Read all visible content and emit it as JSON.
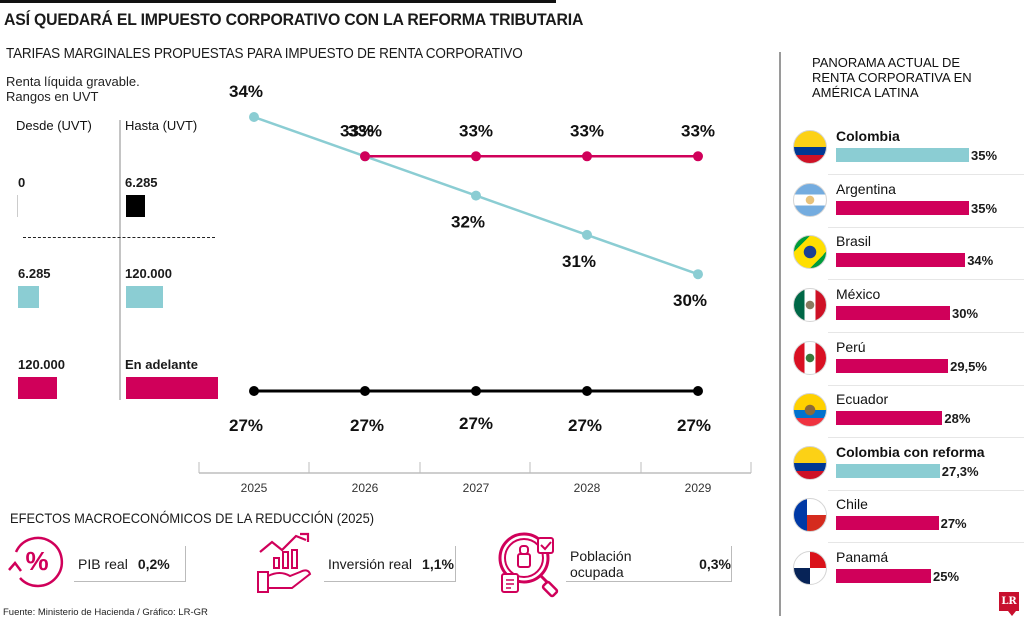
{
  "header": {
    "title": "ASÍ QUEDARÁ EL IMPUESTO CORPORATIVO CON LA REFORMA TRIBUTARIA",
    "subtitle": "TARIFAS MARGINALES PROPUESTAS PARA IMPUESTO DE RENTA CORPORATIVO",
    "note_line1": "Renta líquida gravable.",
    "note_line2": "Rangos en UVT"
  },
  "ranges": {
    "col_from": "Desde (UVT)",
    "col_to": "Hasta (UVT)",
    "rows": [
      {
        "from": "0",
        "to": "6.285",
        "color": "#000000"
      },
      {
        "from": "6.285",
        "to": "120.000",
        "color": "#8bcdd3"
      },
      {
        "from": "120.000",
        "to": "En adelante",
        "color": "#d0005a"
      }
    ]
  },
  "colors": {
    "black": "#000000",
    "teal": "#8bcdd3",
    "magenta": "#d0005a"
  },
  "chart_data": [
    {
      "type": "line",
      "title": "TARIFAS MARGINALES PROPUESTAS PARA IMPUESTO DE RENTA CORPORATIVO",
      "xlabel": "",
      "ylabel": "",
      "x": [
        "2025",
        "2026",
        "2027",
        "2028",
        "2029"
      ],
      "ylim": [
        26,
        35
      ],
      "grid": false,
      "series": [
        {
          "name": "6.285 - 120.000 UVT",
          "color": "#8bcdd3",
          "x": [
            "2025",
            "2026",
            "2027",
            "2028",
            "2029"
          ],
          "values": [
            34,
            33,
            32,
            31,
            30
          ],
          "labels": [
            "34%",
            "33%",
            "32%",
            "31%",
            "30%"
          ]
        },
        {
          "name": "120.000 UVT en adelante",
          "color": "#d0005a",
          "x": [
            "2026",
            "2027",
            "2028",
            "2029"
          ],
          "values": [
            33,
            33,
            33,
            33
          ],
          "labels": [
            "33%",
            "33%",
            "33%",
            "33%"
          ]
        },
        {
          "name": "0 - 6.285 UVT",
          "color": "#000000",
          "x": [
            "2025",
            "2026",
            "2027",
            "2028",
            "2029"
          ],
          "values": [
            27,
            27,
            27,
            27,
            27
          ],
          "labels": [
            "27%",
            "27%",
            "27%",
            "27%",
            "27%"
          ]
        }
      ]
    },
    {
      "type": "bar",
      "title": "PANORAMA ACTUAL DE RENTA CORPORATIVA EN AMÉRICA LATINA",
      "orientation": "horizontal",
      "categories": [
        "Colombia",
        "Argentina",
        "Brasil",
        "México",
        "Perú",
        "Ecuador",
        "Colombia con reforma",
        "Chile",
        "Panamá"
      ],
      "values": [
        35,
        35,
        34,
        30,
        29.5,
        28,
        27.3,
        27,
        25
      ],
      "labels": [
        "35%",
        "35%",
        "34%",
        "30%",
        "29,5%",
        "28%",
        "27,3%",
        "27%",
        "25%"
      ],
      "highlight": [
        "Colombia",
        "Colombia con reforma"
      ]
    }
  ],
  "panorama": {
    "title_line1": "PANORAMA ACTUAL DE",
    "title_line2": "RENTA CORPORATIVA EN",
    "title_line3": "AMÉRICA LATINA",
    "countries": [
      {
        "name": "Colombia",
        "value": 35,
        "label": "35%",
        "bold": true,
        "color": "#8bcdd3",
        "flag": "colombia-flag-icon"
      },
      {
        "name": "Argentina",
        "value": 35,
        "label": "35%",
        "bold": false,
        "color": "#d0005a",
        "flag": "argentina-flag-icon"
      },
      {
        "name": "Brasil",
        "value": 34,
        "label": "34%",
        "bold": false,
        "color": "#d0005a",
        "flag": "brazil-flag-icon"
      },
      {
        "name": "México",
        "value": 30,
        "label": "30%",
        "bold": false,
        "color": "#d0005a",
        "flag": "mexico-flag-icon"
      },
      {
        "name": "Perú",
        "value": 29.5,
        "label": "29,5%",
        "bold": false,
        "color": "#d0005a",
        "flag": "peru-flag-icon"
      },
      {
        "name": "Ecuador",
        "value": 28,
        "label": "28%",
        "bold": false,
        "color": "#d0005a",
        "flag": "ecuador-flag-icon"
      },
      {
        "name": "Colombia con reforma",
        "value": 27.3,
        "label": "27,3%",
        "bold": true,
        "color": "#8bcdd3",
        "flag": "colombia-flag-icon"
      },
      {
        "name": "Chile",
        "value": 27,
        "label": "27%",
        "bold": false,
        "color": "#d0005a",
        "flag": "chile-flag-icon"
      },
      {
        "name": "Panamá",
        "value": 25,
        "label": "25%",
        "bold": false,
        "color": "#d0005a",
        "flag": "panama-flag-icon"
      }
    ]
  },
  "effects": {
    "title": "EFECTOS MACROECONÓMICOS DE LA REDUCCIÓN (2025)",
    "items": [
      {
        "label": "PIB real",
        "value": "0,2%",
        "icon": "percent-cycle-icon"
      },
      {
        "label": "Inversión real",
        "value": "1,1%",
        "icon": "growth-hand-icon"
      },
      {
        "label": "Población ocupada",
        "value": "0,3%",
        "icon": "employment-search-icon"
      }
    ]
  },
  "footer": {
    "source": "Fuente: Ministerio de Hacienda / Gráfico: LR-GR",
    "logo": "LR"
  }
}
